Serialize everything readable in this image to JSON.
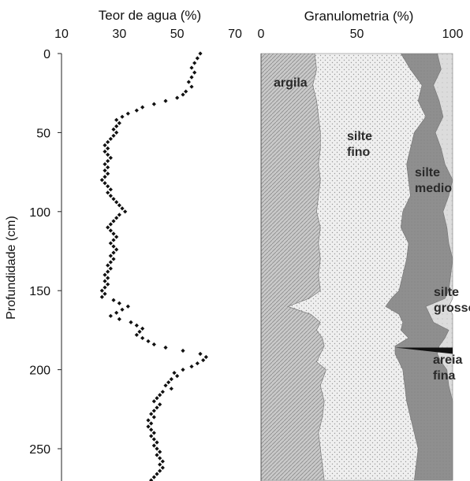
{
  "chart_data": [
    {
      "type": "scatter",
      "title": "Teor de agua (%)",
      "ylabel": "Profundidade (cm)",
      "xlim": [
        10,
        70
      ],
      "ylim": [
        0,
        270
      ],
      "x_ticks": [
        "10",
        "30",
        "50",
        "70"
      ],
      "y_ticks": [
        "0",
        "50",
        "100",
        "150",
        "200",
        "250"
      ],
      "series": [
        {
          "color": "#111111",
          "points": [
            [
              58,
              0
            ],
            [
              57,
              3
            ],
            [
              56,
              6
            ],
            [
              55,
              9
            ],
            [
              56,
              12
            ],
            [
              55,
              15
            ],
            [
              54,
              18
            ],
            [
              55,
              21
            ],
            [
              53,
              24
            ],
            [
              52,
              26
            ],
            [
              50,
              28
            ],
            [
              46,
              30
            ],
            [
              42,
              32
            ],
            [
              38,
              34
            ],
            [
              36,
              36
            ],
            [
              33,
              38
            ],
            [
              31,
              40
            ],
            [
              29,
              42
            ],
            [
              30,
              44
            ],
            [
              29,
              46
            ],
            [
              28,
              48
            ],
            [
              29,
              50
            ],
            [
              28,
              52
            ],
            [
              27,
              54
            ],
            [
              26,
              56
            ],
            [
              25,
              58
            ],
            [
              26,
              60
            ],
            [
              25,
              62
            ],
            [
              26,
              64
            ],
            [
              27,
              66
            ],
            [
              26,
              68
            ],
            [
              25,
              70
            ],
            [
              26,
              72
            ],
            [
              25,
              74
            ],
            [
              26,
              76
            ],
            [
              25,
              78
            ],
            [
              24,
              80
            ],
            [
              25,
              82
            ],
            [
              26,
              84
            ],
            [
              27,
              86
            ],
            [
              26,
              88
            ],
            [
              27,
              90
            ],
            [
              28,
              92
            ],
            [
              29,
              94
            ],
            [
              30,
              96
            ],
            [
              31,
              98
            ],
            [
              32,
              100
            ],
            [
              30,
              102
            ],
            [
              29,
              104
            ],
            [
              28,
              106
            ],
            [
              27,
              108
            ],
            [
              26,
              110
            ],
            [
              27,
              112
            ],
            [
              28,
              114
            ],
            [
              29,
              116
            ],
            [
              28,
              118
            ],
            [
              27,
              120
            ],
            [
              28,
              122
            ],
            [
              29,
              124
            ],
            [
              28,
              126
            ],
            [
              27,
              128
            ],
            [
              28,
              130
            ],
            [
              27,
              132
            ],
            [
              26,
              134
            ],
            [
              27,
              136
            ],
            [
              26,
              138
            ],
            [
              25,
              140
            ],
            [
              26,
              142
            ],
            [
              25,
              144
            ],
            [
              26,
              146
            ],
            [
              25,
              148
            ],
            [
              24,
              150
            ],
            [
              25,
              152
            ],
            [
              24,
              154
            ],
            [
              28,
              156
            ],
            [
              30,
              158
            ],
            [
              33,
              160
            ],
            [
              31,
              162
            ],
            [
              29,
              164
            ],
            [
              27,
              166
            ],
            [
              30,
              168
            ],
            [
              34,
              170
            ],
            [
              36,
              172
            ],
            [
              38,
              174
            ],
            [
              37,
              176
            ],
            [
              36,
              178
            ],
            [
              38,
              180
            ],
            [
              40,
              182
            ],
            [
              42,
              184
            ],
            [
              46,
              186
            ],
            [
              52,
              188
            ],
            [
              58,
              190
            ],
            [
              60,
              192
            ],
            [
              59,
              194
            ],
            [
              57,
              196
            ],
            [
              55,
              198
            ],
            [
              52,
              200
            ],
            [
              49,
              202
            ],
            [
              50,
              204
            ],
            [
              48,
              206
            ],
            [
              47,
              208
            ],
            [
              46,
              210
            ],
            [
              48,
              212
            ],
            [
              45,
              214
            ],
            [
              44,
              216
            ],
            [
              43,
              218
            ],
            [
              42,
              220
            ],
            [
              44,
              222
            ],
            [
              43,
              224
            ],
            [
              42,
              226
            ],
            [
              41,
              228
            ],
            [
              42,
              230
            ],
            [
              40,
              232
            ],
            [
              41,
              234
            ],
            [
              40,
              236
            ],
            [
              41,
              238
            ],
            [
              42,
              240
            ],
            [
              41,
              242
            ],
            [
              42,
              244
            ],
            [
              43,
              246
            ],
            [
              42,
              248
            ],
            [
              43,
              250
            ],
            [
              44,
              252
            ],
            [
              43,
              254
            ],
            [
              44,
              256
            ],
            [
              45,
              258
            ],
            [
              44,
              260
            ],
            [
              45,
              262
            ],
            [
              44,
              264
            ],
            [
              43,
              266
            ],
            [
              42,
              268
            ],
            [
              41,
              270
            ]
          ]
        }
      ]
    },
    {
      "type": "area",
      "title": "Granulometria (%)",
      "xlim": [
        0,
        100
      ],
      "ylim": [
        0,
        270
      ],
      "x_ticks": [
        "0",
        "50",
        "100"
      ],
      "depths": [
        0,
        10,
        20,
        30,
        40,
        50,
        60,
        70,
        80,
        90,
        100,
        110,
        120,
        130,
        140,
        150,
        155,
        160,
        165,
        170,
        175,
        180,
        185,
        190,
        195,
        200,
        210,
        220,
        230,
        240,
        250,
        260,
        270
      ],
      "series": [
        {
          "name": "argila",
          "color": "#b0b0b0",
          "boundary": [
            28,
            29,
            27,
            29,
            30,
            31,
            31,
            30,
            31,
            30,
            29,
            31,
            30,
            31,
            30,
            31,
            25,
            14,
            26,
            31,
            29,
            32,
            33,
            31,
            29,
            34,
            31,
            33,
            32,
            30,
            31,
            32,
            33
          ]
        },
        {
          "name": "silte fino",
          "color": "#e6e6e6",
          "boundary": [
            73,
            78,
            84,
            82,
            86,
            80,
            78,
            76,
            77,
            78,
            74,
            73,
            77,
            76,
            74,
            72,
            68,
            65,
            72,
            74,
            73,
            77,
            70,
            70,
            72,
            74,
            75,
            76,
            78,
            80,
            82,
            81,
            80
          ]
        },
        {
          "name": "silte medio",
          "color": "#8c8c8c",
          "boundary": [
            92,
            94,
            90,
            93,
            95,
            91,
            94,
            96,
            100,
            98,
            95,
            97,
            98,
            100,
            99,
            98,
            96,
            86,
            88,
            90,
            98,
            96,
            93,
            92,
            94,
            97,
            98,
            100,
            100,
            100,
            100,
            100,
            100
          ]
        },
        {
          "name": "silte grosso",
          "color": "#d2d2d2",
          "boundary": [
            100,
            100,
            100,
            100,
            100,
            100,
            100,
            100,
            100,
            100,
            100,
            100,
            100,
            100,
            100,
            100,
            100,
            98,
            100,
            100,
            100,
            100,
            100,
            100,
            100,
            100,
            100,
            100,
            100,
            100,
            100,
            100,
            100
          ]
        }
      ],
      "areia_fina_wedge": [
        [
          70,
          186
        ],
        [
          100,
          186
        ],
        [
          100,
          190
        ]
      ],
      "zone_labels": [
        [
          "argila"
        ],
        [
          "silte",
          "fino"
        ],
        [
          "silte",
          "medio"
        ],
        [
          "silte",
          "grosso"
        ],
        [
          "areia",
          "fina"
        ]
      ]
    }
  ]
}
